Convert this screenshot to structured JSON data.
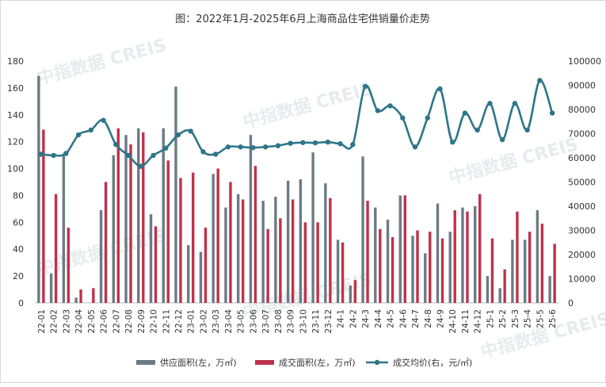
{
  "chart_data": {
    "type": "bar",
    "title": "图：2022年1月-2025年6月上海商品住宅供销量价走势",
    "watermark": "中指数据 CREIS",
    "categories": [
      "22-01",
      "22-02",
      "22-03",
      "22-04",
      "22-05",
      "22-06",
      "22-07",
      "22-08",
      "22-09",
      "22-10",
      "22-11",
      "22-12",
      "23-01",
      "23-02",
      "23-03",
      "23-04",
      "23-05",
      "23-06",
      "23-07",
      "23-08",
      "23-09",
      "23-10",
      "23-11",
      "23-12",
      "24-1",
      "24-2",
      "24-3",
      "24-4",
      "24-5",
      "24-6",
      "24-7",
      "24-8",
      "24-9",
      "24-10",
      "24-11",
      "24-12",
      "25-1",
      "25-2",
      "25-3",
      "25-4",
      "25-5",
      "25-6"
    ],
    "ylim_left": [
      0,
      180
    ],
    "yticks_left": [
      0,
      20,
      40,
      60,
      80,
      100,
      120,
      140,
      160,
      180
    ],
    "ylim_right": [
      0,
      100000
    ],
    "yticks_right": [
      0,
      10000,
      20000,
      30000,
      40000,
      50000,
      60000,
      70000,
      80000,
      90000,
      100000
    ],
    "grid": false,
    "legend_position": "bottom",
    "series": [
      {
        "name": "供应面积(左，万㎡)",
        "kind": "bar",
        "axis": "left",
        "color": "#6b7b84",
        "values": [
          169,
          22,
          111,
          4,
          0,
          69,
          110,
          125,
          130,
          66,
          130,
          161,
          43,
          38,
          96,
          71,
          81,
          125,
          76,
          79,
          91,
          92,
          112,
          89,
          47,
          13,
          109,
          71,
          62,
          80,
          50,
          37,
          74,
          53,
          71,
          72,
          20,
          11,
          47,
          47,
          69,
          20
        ]
      },
      {
        "name": "成交面积(左，万㎡)",
        "kind": "bar",
        "axis": "left",
        "color": "#c0314a",
        "values": [
          129,
          81,
          56,
          10,
          11,
          90,
          130,
          118,
          127,
          57,
          106,
          93,
          97,
          56,
          100,
          90,
          77,
          102,
          55,
          63,
          77,
          60,
          60,
          78,
          45,
          17,
          76,
          55,
          49,
          80,
          54,
          53,
          48,
          69,
          68,
          81,
          48,
          25,
          68,
          53,
          59,
          44
        ]
      },
      {
        "name": "成交均价(右，元/㎡)",
        "kind": "line",
        "axis": "right",
        "color": "#2e7588",
        "values": [
          61500,
          61000,
          61800,
          69500,
          71500,
          75500,
          65500,
          61000,
          56500,
          61000,
          64000,
          69500,
          71000,
          62500,
          61500,
          64500,
          64500,
          64200,
          64500,
          65000,
          66000,
          66300,
          66200,
          66500,
          65800,
          65500,
          89500,
          79500,
          81500,
          76500,
          64500,
          76500,
          88500,
          66500,
          78500,
          71500,
          82500,
          67500,
          82500,
          71500,
          92000,
          78500
        ]
      }
    ]
  }
}
